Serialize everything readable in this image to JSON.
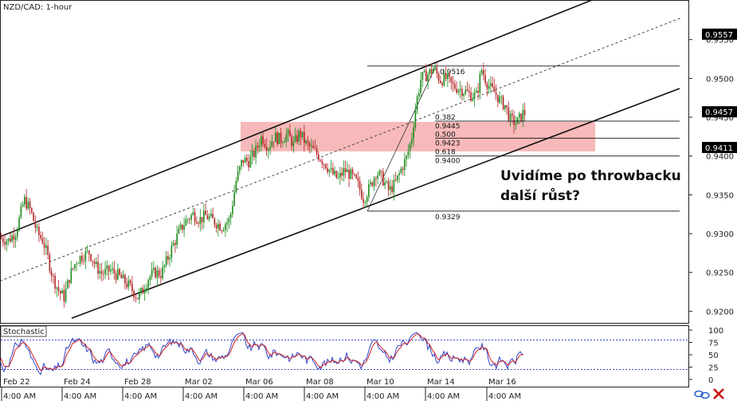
{
  "chart_data": [
    {
      "type": "candlestick",
      "title": "NZD/CAD: 1-hour",
      "ylim": [
        0.9185,
        0.96
      ],
      "y_ticks": [
        "0.9200",
        "0.9250",
        "0.9300",
        "0.9350",
        "0.9400",
        "0.9450",
        "0.9500",
        "0.9550"
      ],
      "price_tags": [
        {
          "label": "0.9557",
          "value": 0.9557
        },
        {
          "label": "0.9457",
          "value": 0.9457
        },
        {
          "label": "0.9411",
          "value": 0.9411
        }
      ],
      "series_path": [
        [
          0,
          0.9295
        ],
        [
          12,
          0.9291
        ],
        [
          22,
          0.9303
        ],
        [
          32,
          0.9344
        ],
        [
          40,
          0.933
        ],
        [
          48,
          0.9302
        ],
        [
          56,
          0.929
        ],
        [
          62,
          0.9268
        ],
        [
          68,
          0.9243
        ],
        [
          76,
          0.9225
        ],
        [
          82,
          0.9218
        ],
        [
          90,
          0.9248
        ],
        [
          98,
          0.9266
        ],
        [
          106,
          0.9272
        ],
        [
          114,
          0.9276
        ],
        [
          122,
          0.9258
        ],
        [
          130,
          0.9248
        ],
        [
          140,
          0.9253
        ],
        [
          150,
          0.9246
        ],
        [
          158,
          0.9238
        ],
        [
          166,
          0.923
        ],
        [
          174,
          0.9218
        ],
        [
          180,
          0.9225
        ],
        [
          188,
          0.9243
        ],
        [
          196,
          0.925
        ],
        [
          204,
          0.9248
        ],
        [
          212,
          0.9268
        ],
        [
          220,
          0.9288
        ],
        [
          228,
          0.9305
        ],
        [
          236,
          0.9318
        ],
        [
          244,
          0.9325
        ],
        [
          252,
          0.9318
        ],
        [
          260,
          0.9323
        ],
        [
          270,
          0.9316
        ],
        [
          280,
          0.9309
        ],
        [
          290,
          0.9318
        ],
        [
          298,
          0.9368
        ],
        [
          306,
          0.9395
        ],
        [
          314,
          0.9393
        ],
        [
          322,
          0.9405
        ],
        [
          330,
          0.9425
        ],
        [
          338,
          0.9412
        ],
        [
          346,
          0.9425
        ],
        [
          354,
          0.9421
        ],
        [
          362,
          0.9428
        ],
        [
          370,
          0.9415
        ],
        [
          378,
          0.943
        ],
        [
          386,
          0.9415
        ],
        [
          394,
          0.9408
        ],
        [
          402,
          0.94
        ],
        [
          410,
          0.939
        ],
        [
          418,
          0.9378
        ],
        [
          426,
          0.937
        ],
        [
          434,
          0.9382
        ],
        [
          442,
          0.9375
        ],
        [
          450,
          0.9365
        ],
        [
          458,
          0.9345
        ],
        [
          466,
          0.936
        ],
        [
          474,
          0.938
        ],
        [
          482,
          0.937
        ],
        [
          490,
          0.9355
        ],
        [
          498,
          0.9365
        ],
        [
          506,
          0.9385
        ],
        [
          512,
          0.9398
        ],
        [
          518,
          0.9422
        ],
        [
          524,
          0.9468
        ],
        [
          530,
          0.95
        ],
        [
          538,
          0.9505
        ],
        [
          546,
          0.9513
        ],
        [
          554,
          0.9498
        ],
        [
          562,
          0.95
        ],
        [
          570,
          0.949
        ],
        [
          578,
          0.9487
        ],
        [
          586,
          0.9483
        ],
        [
          594,
          0.9478
        ],
        [
          600,
          0.9478
        ],
        [
          606,
          0.9512
        ],
        [
          612,
          0.9496
        ],
        [
          618,
          0.9486
        ],
        [
          624,
          0.948
        ],
        [
          630,
          0.947
        ],
        [
          636,
          0.9465
        ],
        [
          642,
          0.9447
        ],
        [
          650,
          0.9442
        ],
        [
          658,
          0.9455
        ]
      ],
      "pivot_levels": [
        {
          "label": "0.9516",
          "value": 0.9516
        },
        {
          "label": "0.9329",
          "value": 0.9329
        }
      ],
      "fib_levels": [
        {
          "ratio": "0.382",
          "price": "0.9445",
          "value": 0.9445
        },
        {
          "ratio": "0.500",
          "price": "0.9423",
          "value": 0.9423
        },
        {
          "ratio": "0.618",
          "price": "0.9400",
          "value": 0.94
        }
      ],
      "zone": {
        "from": 0.9406,
        "to": 0.9444
      },
      "channel": {
        "upper": [
          [
            0,
            0.9296
          ],
          [
            760,
            0.9608
          ]
        ],
        "middle": [
          [
            0,
            0.9239
          ],
          [
            855,
            0.9578
          ]
        ],
        "lower": [
          [
            90,
            0.9191
          ],
          [
            853,
            0.9487
          ]
        ]
      },
      "annotation": [
        "Uvidíme po throwbacku",
        "další růst?"
      ],
      "colors": {
        "bull": "#1a8a1a",
        "bear": "#b22222",
        "zone": "#f08080"
      }
    },
    {
      "type": "line",
      "title": "Stochastic",
      "ylim": [
        0,
        100
      ],
      "y_ticks": [
        "100",
        "75",
        "50",
        "25",
        "0"
      ],
      "levels": [
        80,
        20
      ],
      "series": [
        {
          "color": "#3344cc"
        },
        {
          "color": "#cc2222"
        }
      ]
    }
  ],
  "x_axis": {
    "dates": [
      "Feb 22",
      "Feb 24",
      "Feb 28",
      "Mar 02",
      "Mar 06",
      "Mar 08",
      "Mar 10",
      "Mar 14",
      "Mar 16"
    ],
    "times": [
      "4:00 AM",
      "4:00 AM",
      "4:00 AM",
      "4:00 AM",
      "4:00 AM",
      "4:00 AM",
      "4:00 AM",
      "4:00 AM",
      "4:00 AM"
    ]
  },
  "icons": [
    "link-icon",
    "close-icon"
  ]
}
